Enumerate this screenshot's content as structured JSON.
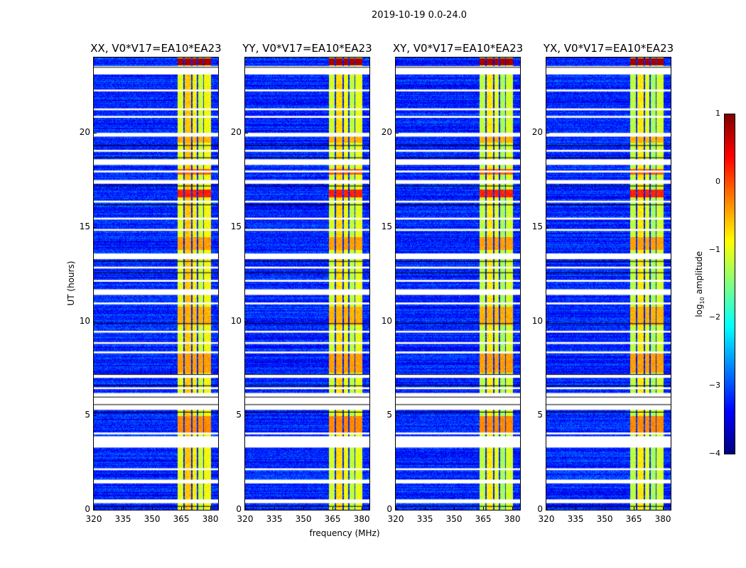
{
  "chart_data": {
    "type": "heatmap",
    "title": "2019-10-19 0.0-24.0",
    "xlabel": "frequency (MHz)",
    "ylabel": "UT (hours)",
    "xlim": [
      320,
      384
    ],
    "ylim": [
      0,
      24
    ],
    "xticks": [
      "320",
      "335",
      "350",
      "365",
      "380"
    ],
    "xtick_values": [
      320,
      335,
      350,
      365,
      380
    ],
    "yticks": [
      "0",
      "5",
      "10",
      "15",
      "20"
    ],
    "ytick_values": [
      0,
      5,
      10,
      15,
      20
    ],
    "panels": [
      {
        "title": "XX, V0*V17=EA10*EA23",
        "band_boost": 0.2
      },
      {
        "title": "YY, V0*V17=EA10*EA23",
        "band_boost": 0.1
      },
      {
        "title": "XY, V0*V17=EA10*EA23",
        "band_boost": 0.0
      },
      {
        "title": "YX, V0*V17=EA10*EA23",
        "band_boost": 0.0
      }
    ],
    "colorbar": {
      "label_main": "log",
      "label_sub": "10",
      "label_rest": " amplitude",
      "range": [
        -4,
        1
      ],
      "ticks": [
        "−4",
        "−3",
        "−2",
        "−1",
        "0",
        "1"
      ],
      "tick_values": [
        -4,
        -3,
        -2,
        -1,
        0,
        1
      ],
      "colormap": "jet"
    },
    "background_level": -3.2,
    "bands_mhz": [
      {
        "from": 363,
        "to": 366,
        "level": -1.2
      },
      {
        "from": 366.5,
        "to": 370,
        "level": -0.8
      },
      {
        "from": 370.5,
        "to": 373,
        "level": -1.0
      },
      {
        "from": 373.5,
        "to": 376,
        "level": -1.3
      },
      {
        "from": 376.5,
        "to": 380,
        "level": -1.1
      }
    ],
    "bright_hours": [
      {
        "from": 23.6,
        "to": 24.0,
        "level": 0.8
      },
      {
        "from": 16.6,
        "to": 17.0,
        "level": 0.2
      },
      {
        "from": 17.8,
        "to": 18.1,
        "level": -0.1
      },
      {
        "from": 4.1,
        "to": 5.0,
        "level": -0.3
      },
      {
        "from": 7.3,
        "to": 8.3,
        "level": -0.4
      },
      {
        "from": 9.8,
        "to": 10.8,
        "level": -0.5
      },
      {
        "from": 13.8,
        "to": 14.5,
        "level": -0.4
      },
      {
        "from": 19.5,
        "to": 20.0,
        "level": -0.5
      }
    ],
    "flagged_hours": [
      [
        23.1,
        23.55
      ],
      [
        22.2,
        22.3
      ],
      [
        21.2,
        21.3
      ],
      [
        20.8,
        20.9
      ],
      [
        19.8,
        20.0
      ],
      [
        19.0,
        19.1
      ],
      [
        18.3,
        18.6
      ],
      [
        17.9,
        18.0
      ],
      [
        17.3,
        17.5
      ],
      [
        16.3,
        16.4
      ],
      [
        15.4,
        15.5
      ],
      [
        14.8,
        14.9
      ],
      [
        13.3,
        13.6
      ],
      [
        12.8,
        12.9
      ],
      [
        12.1,
        12.2
      ],
      [
        11.4,
        11.7
      ],
      [
        10.9,
        11.0
      ],
      [
        9.4,
        9.5
      ],
      [
        8.8,
        8.9
      ],
      [
        8.3,
        8.4
      ],
      [
        7.0,
        7.2
      ],
      [
        6.4,
        6.5
      ],
      [
        5.3,
        6.2
      ],
      [
        4.0,
        4.1
      ],
      [
        3.3,
        3.9
      ],
      [
        2.1,
        2.2
      ],
      [
        1.4,
        1.6
      ],
      [
        0.35,
        0.55
      ]
    ],
    "black_lines_hours": [
      23.5,
      19.35,
      18.7,
      17.2,
      16.2,
      13.2,
      12.6,
      9.9,
      7.2,
      6.6,
      6.0,
      5.6,
      5.2,
      0.2
    ]
  }
}
